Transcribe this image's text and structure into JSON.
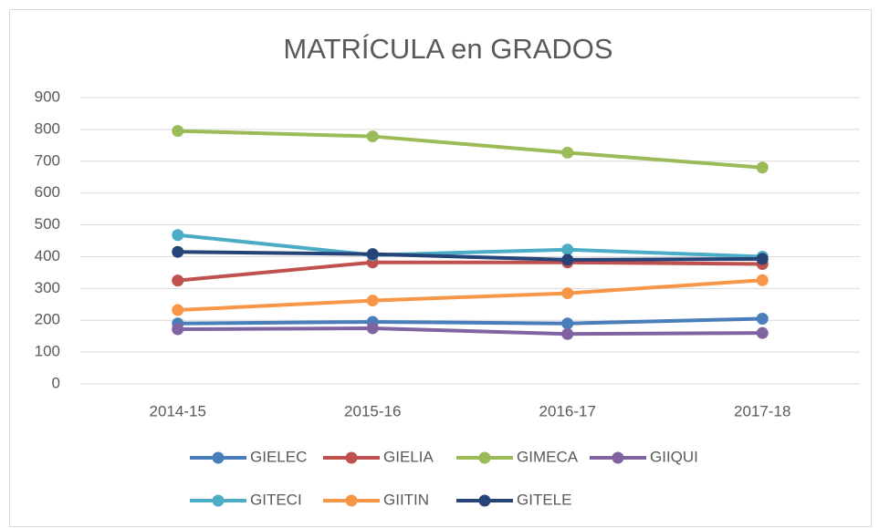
{
  "chart_data": {
    "type": "line",
    "title": "MATRÍCULA en GRADOS",
    "categories": [
      "2014-15",
      "2015-16",
      "2016-17",
      "2017-18"
    ],
    "series": [
      {
        "name": "GIELEC",
        "color": "#4a7ebb",
        "values": [
          190,
          195,
          190,
          205
        ]
      },
      {
        "name": "GIELIA",
        "color": "#c0504d",
        "values": [
          325,
          382,
          382,
          377
        ]
      },
      {
        "name": "GIMECA",
        "color": "#9bbb59",
        "values": [
          795,
          778,
          727,
          680
        ]
      },
      {
        "name": "GIIQUI",
        "color": "#8064a2",
        "values": [
          172,
          175,
          157,
          160
        ]
      },
      {
        "name": "GITECI",
        "color": "#4bacc6",
        "values": [
          468,
          405,
          422,
          400
        ]
      },
      {
        "name": "GIITIN",
        "color": "#f79646",
        "values": [
          232,
          262,
          285,
          326
        ]
      },
      {
        "name": "GITELE",
        "color": "#264478",
        "values": [
          415,
          408,
          390,
          393
        ]
      }
    ],
    "ylim": [
      0,
      900
    ],
    "yticks": [
      0,
      100,
      200,
      300,
      400,
      500,
      600,
      700,
      800,
      900
    ],
    "grid": true,
    "legend": "bottom"
  }
}
